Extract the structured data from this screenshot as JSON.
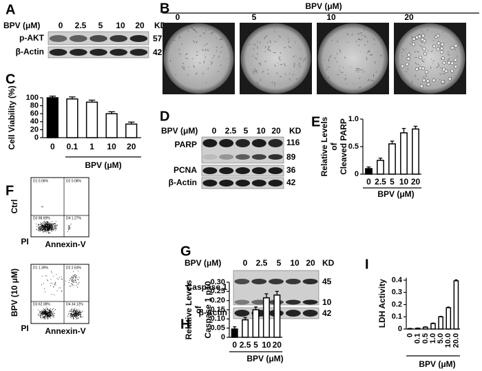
{
  "figure": {
    "A": {
      "label": "A",
      "title": "BPV (μM)",
      "lanes": [
        "0",
        "2.5",
        "5",
        "10",
        "20"
      ],
      "kd": "KD",
      "rows": [
        "p-AKT",
        "β-Actin"
      ],
      "row_kd": [
        "57",
        "42"
      ]
    },
    "B": {
      "label": "B",
      "title": "BPV (μM)",
      "doses": [
        "0",
        "5",
        "10",
        "20"
      ]
    },
    "D": {
      "label": "D",
      "title": "BPV (μM)",
      "lanes": [
        "0",
        "2.5",
        "5",
        "10",
        "20"
      ],
      "kd": "KD",
      "rows": [
        "PARP",
        "PCNA",
        "β-Actin"
      ],
      "row_kd": [
        "116",
        "89",
        "36",
        "42"
      ]
    },
    "F": {
      "label": "F",
      "plots": [
        {
          "condition": "Ctrl",
          "ylabel": "PI",
          "xlabel": "Annexin-V",
          "quadrants": [
            "D1 0.06%",
            "D2 0.08%",
            "D3 98.69%",
            "D4 1.27%"
          ]
        },
        {
          "condition": "BPV (10 μM)",
          "ylabel": "PI",
          "xlabel": "Annexin-V",
          "quadrants": [
            "D1 1.39%",
            "D2 2.63%",
            "D3 62.08%",
            "D4 34.12%"
          ]
        }
      ]
    },
    "G": {
      "label": "G",
      "title": "BPV (μM)",
      "lanes": [
        "0",
        "2.5",
        "5",
        "10",
        "20"
      ],
      "kd": "KD",
      "rows": [
        "Caspase 1",
        "β-Actin"
      ],
      "row_kd": [
        "45",
        "10",
        "42"
      ]
    }
  },
  "chart_data": [
    {
      "type": "bar",
      "label": "C",
      "ylabel": [
        "Cell Viability (%)"
      ],
      "xlabel": "BPV (μM)",
      "categories": [
        "0",
        "0.1",
        "1",
        "10",
        "20"
      ],
      "values": [
        100,
        97,
        89,
        60,
        34
      ],
      "errors": [
        4,
        5,
        5,
        5,
        5
      ],
      "bar_colors": [
        "#000000",
        "#ffffff",
        "#ffffff",
        "#ffffff",
        "#ffffff"
      ],
      "ylim": [
        0,
        100
      ],
      "yticks": [
        0,
        20,
        40,
        60,
        80,
        100
      ]
    },
    {
      "type": "bar",
      "label": "E",
      "ylabel": [
        "Relative Levels",
        "of",
        "Cleaved PARP"
      ],
      "xlabel": "BPV (μM)",
      "categories": [
        "0",
        "2.5",
        "5",
        "10",
        "20"
      ],
      "values": [
        0.1,
        0.25,
        0.55,
        0.75,
        0.82
      ],
      "errors": [
        0.03,
        0.04,
        0.05,
        0.08,
        0.05
      ],
      "bar_colors": [
        "#000000",
        "#ffffff",
        "#ffffff",
        "#ffffff",
        "#ffffff"
      ],
      "ylim": [
        0,
        1.0
      ],
      "yticks": [
        0,
        0.5,
        {
          "value": 1.0,
          "label": "1.0"
        }
      ]
    },
    {
      "type": "bar",
      "label": "H",
      "ylabel": [
        "Relative Levels",
        "of",
        "Caspase 1 p10"
      ],
      "xlabel": "BPV (μM)",
      "categories": [
        "0",
        "2.5",
        "5",
        "10",
        "20"
      ],
      "values": [
        0.045,
        0.095,
        0.15,
        0.215,
        0.23
      ],
      "errors": [
        0.012,
        0.012,
        0.015,
        0.022,
        0.02
      ],
      "bar_colors": [
        "#000000",
        "#ffffff",
        "#ffffff",
        "#ffffff",
        "#ffffff"
      ],
      "ylim": [
        0,
        0.3
      ],
      "yticks": [
        0,
        0.05,
        {
          "value": 0.1,
          "label": "0.10"
        },
        0.15,
        {
          "value": 0.2,
          "label": "0.20"
        },
        0.25,
        {
          "value": 0.3,
          "label": "0.30"
        }
      ]
    },
    {
      "type": "bar",
      "label": "I",
      "ylabel": [
        "LDH Activity"
      ],
      "xlabel": "BPV (μM)",
      "categories": [
        "0",
        "0.1",
        "0.5",
        "1.0",
        "5.0",
        "10.0",
        "20.0"
      ],
      "values": [
        0.003,
        0.006,
        0.015,
        0.045,
        0.1,
        0.175,
        0.395
      ],
      "errors": [
        0.002,
        0.002,
        0.003,
        0.004,
        0.004,
        0.005,
        0.008
      ],
      "bar_colors": [
        "#ffffff",
        "#ffffff",
        "#ffffff",
        "#ffffff",
        "#ffffff",
        "#ffffff",
        "#ffffff"
      ],
      "ylim": [
        0,
        0.42
      ],
      "yticks": [
        0,
        0.1,
        0.2,
        0.3,
        0.4
      ]
    }
  ]
}
